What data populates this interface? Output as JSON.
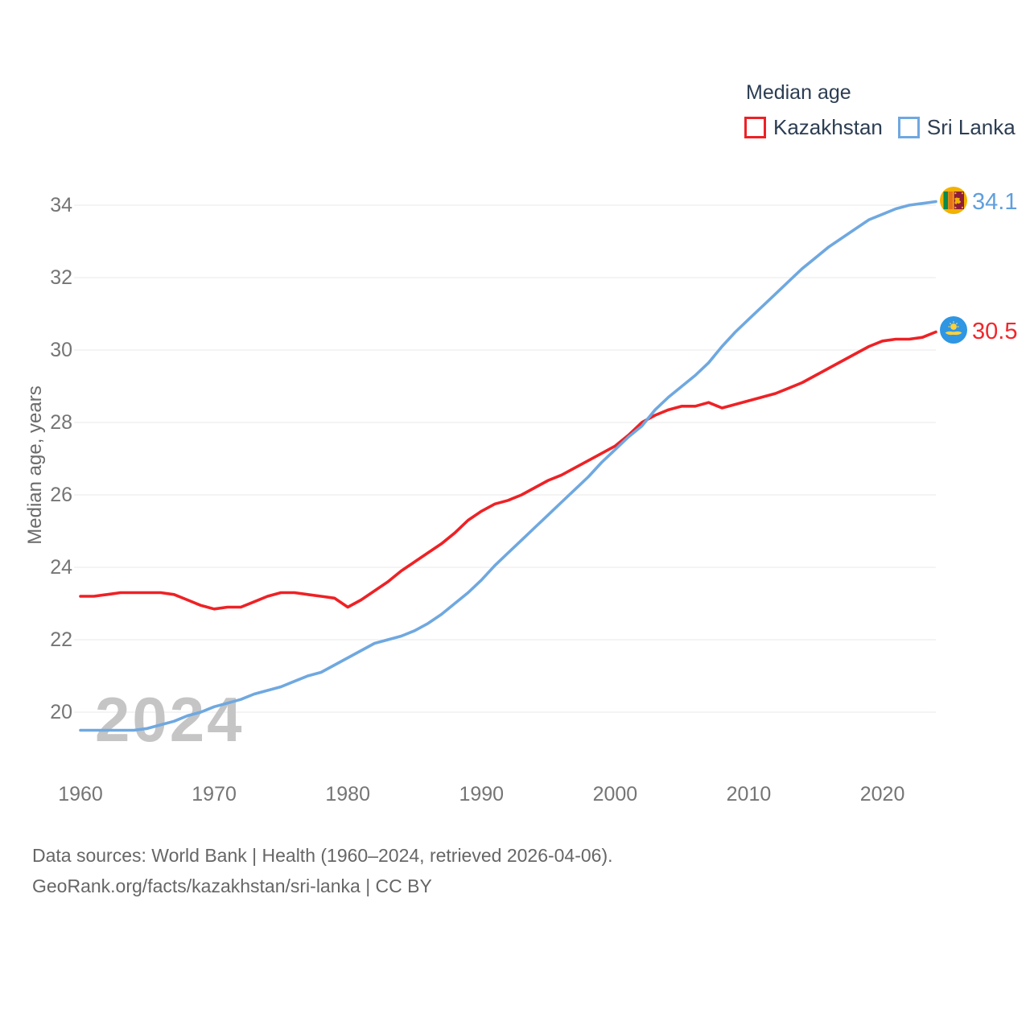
{
  "legend": {
    "title": "Median age",
    "items": [
      {
        "label": "Kazakhstan",
        "color": "#ee2125"
      },
      {
        "label": "Sri Lanka",
        "color": "#6fa8e0"
      }
    ]
  },
  "watermark": "2024",
  "end_labels": [
    {
      "series": "Sri Lanka",
      "value": "34.1",
      "color": "#5f9fdd"
    },
    {
      "series": "Kazakhstan",
      "value": "30.5",
      "color": "#f2262b"
    }
  ],
  "footer": {
    "line1": "Data sources: World Bank | Health (1960–2024, retrieved 2026-04-06).",
    "line2": "GeoRank.org/facts/kazakhstan/sri-lanka | CC BY"
  },
  "flag_colors": {
    "kazakhstan": {
      "background": "#2f96e3",
      "gold": "#ffd23c"
    },
    "sri_lanka": {
      "yellow": "#f2b200",
      "green": "#0a8a4d",
      "orange": "#e8731f",
      "maroon": "#8d1f3c"
    }
  },
  "chart_data": {
    "type": "line",
    "title": "Median age",
    "xlabel": "",
    "ylabel": "Median age, years",
    "x_range": [
      1960,
      2024
    ],
    "ylim": [
      19,
      35
    ],
    "grid": "horizontal",
    "gridline_color": "#e9e9e9",
    "legend_position": "top-right",
    "yticks": [
      20,
      22,
      24,
      26,
      28,
      30,
      32,
      34
    ],
    "xticks": [
      1960,
      1970,
      1980,
      1990,
      2000,
      2010,
      2020
    ],
    "x": [
      1960,
      1961,
      1962,
      1963,
      1964,
      1965,
      1966,
      1967,
      1968,
      1969,
      1970,
      1971,
      1972,
      1973,
      1974,
      1975,
      1976,
      1977,
      1978,
      1979,
      1980,
      1981,
      1982,
      1983,
      1984,
      1985,
      1986,
      1987,
      1988,
      1989,
      1990,
      1991,
      1992,
      1993,
      1994,
      1995,
      1996,
      1997,
      1998,
      1999,
      2000,
      2001,
      2002,
      2003,
      2004,
      2005,
      2006,
      2007,
      2008,
      2009,
      2010,
      2011,
      2012,
      2013,
      2014,
      2015,
      2016,
      2017,
      2018,
      2019,
      2020,
      2021,
      2022,
      2023,
      2024
    ],
    "series": [
      {
        "name": "Kazakhstan",
        "color": "#ee2125",
        "values": [
          23.2,
          23.2,
          23.25,
          23.3,
          23.3,
          23.3,
          23.3,
          23.25,
          23.1,
          22.95,
          22.85,
          22.9,
          22.9,
          23.05,
          23.2,
          23.3,
          23.3,
          23.25,
          23.2,
          23.15,
          22.9,
          23.1,
          23.35,
          23.6,
          23.9,
          24.15,
          24.4,
          24.65,
          24.95,
          25.3,
          25.55,
          25.75,
          25.85,
          26.0,
          26.2,
          26.4,
          26.55,
          26.75,
          26.95,
          27.15,
          27.35,
          27.65,
          28.0,
          28.2,
          28.35,
          28.45,
          28.45,
          28.55,
          28.4,
          28.5,
          28.6,
          28.7,
          28.8,
          28.95,
          29.1,
          29.3,
          29.5,
          29.7,
          29.9,
          30.1,
          30.25,
          30.3,
          30.3,
          30.35,
          30.5
        ]
      },
      {
        "name": "Sri Lanka",
        "color": "#6fa8e0",
        "values": [
          19.5,
          19.5,
          19.5,
          19.5,
          19.5,
          19.55,
          19.65,
          19.75,
          19.9,
          20.0,
          20.15,
          20.25,
          20.35,
          20.5,
          20.6,
          20.7,
          20.85,
          21.0,
          21.1,
          21.3,
          21.5,
          21.7,
          21.9,
          22.0,
          22.1,
          22.25,
          22.45,
          22.7,
          23.0,
          23.3,
          23.65,
          24.05,
          24.4,
          24.75,
          25.1,
          25.45,
          25.8,
          26.15,
          26.5,
          26.9,
          27.25,
          27.6,
          27.9,
          28.35,
          28.7,
          29.0,
          29.3,
          29.65,
          30.1,
          30.5,
          30.85,
          31.2,
          31.55,
          31.9,
          32.25,
          32.55,
          32.85,
          33.1,
          33.35,
          33.6,
          33.75,
          33.9,
          34.0,
          34.05,
          34.1
        ]
      }
    ]
  }
}
